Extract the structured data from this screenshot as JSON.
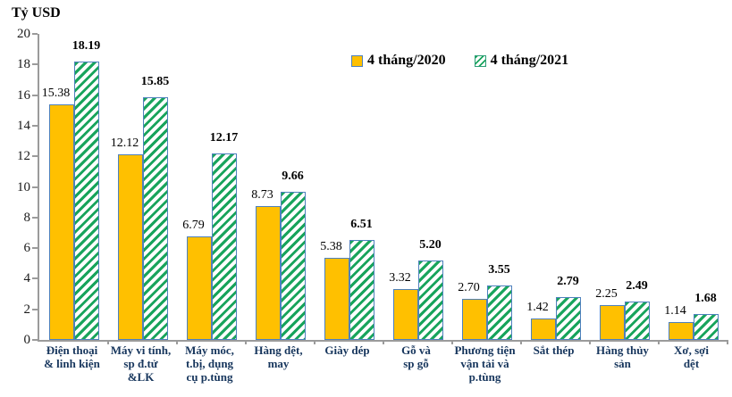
{
  "unit_label": "Tỷ USD",
  "colors": {
    "bar_2020_fill": "#ffc000",
    "bar_2021_hatch_green": "#18a45c",
    "bar_border_blue": "#4e81bd",
    "axis_gray": "#9b9b9b",
    "category_text_navy": "#17365d"
  },
  "chart_data": {
    "type": "bar",
    "title": "Tỷ USD",
    "ylabel": "Tỷ USD",
    "xlabel": "",
    "ylim": [
      0,
      20
    ],
    "ytick_step": 2,
    "grid": false,
    "legend_position": "top-center",
    "categories": [
      "Điện thoại & linh kiện",
      "Máy vi tính, sp đ.tử &LK",
      "Máy móc, t.bị, dụng cụ p.tùng",
      "Hàng dệt, may",
      "Giày dép",
      "Gỗ và sp gỗ",
      "Phương tiện vận tải và p.tùng",
      "Sắt thép",
      "Hàng thủy sản",
      "Xơ, sợi dệt"
    ],
    "category_lines": [
      [
        "Điện thoại",
        "& linh kiện"
      ],
      [
        "Máy vi tính,",
        "sp đ.tử",
        "&LK"
      ],
      [
        "Máy móc,",
        "t.bị, dụng",
        "cụ p.tùng"
      ],
      [
        "Hàng dệt,",
        "may"
      ],
      [
        "Giày dép"
      ],
      [
        "Gỗ và",
        "sp gỗ"
      ],
      [
        "Phương tiện",
        "vận tải và",
        "p.tùng"
      ],
      [
        "Sắt thép"
      ],
      [
        "Hàng thủy",
        "sản"
      ],
      [
        "Xơ, sợi",
        "dệt"
      ]
    ],
    "series": [
      {
        "name": "4 tháng/2020",
        "values": [
          15.38,
          12.12,
          6.79,
          8.73,
          5.38,
          3.32,
          2.7,
          1.42,
          2.25,
          1.14
        ]
      },
      {
        "name": "4 tháng/2021",
        "values": [
          18.19,
          15.85,
          12.17,
          9.66,
          6.51,
          5.2,
          3.55,
          2.79,
          2.49,
          1.68
        ]
      }
    ]
  }
}
